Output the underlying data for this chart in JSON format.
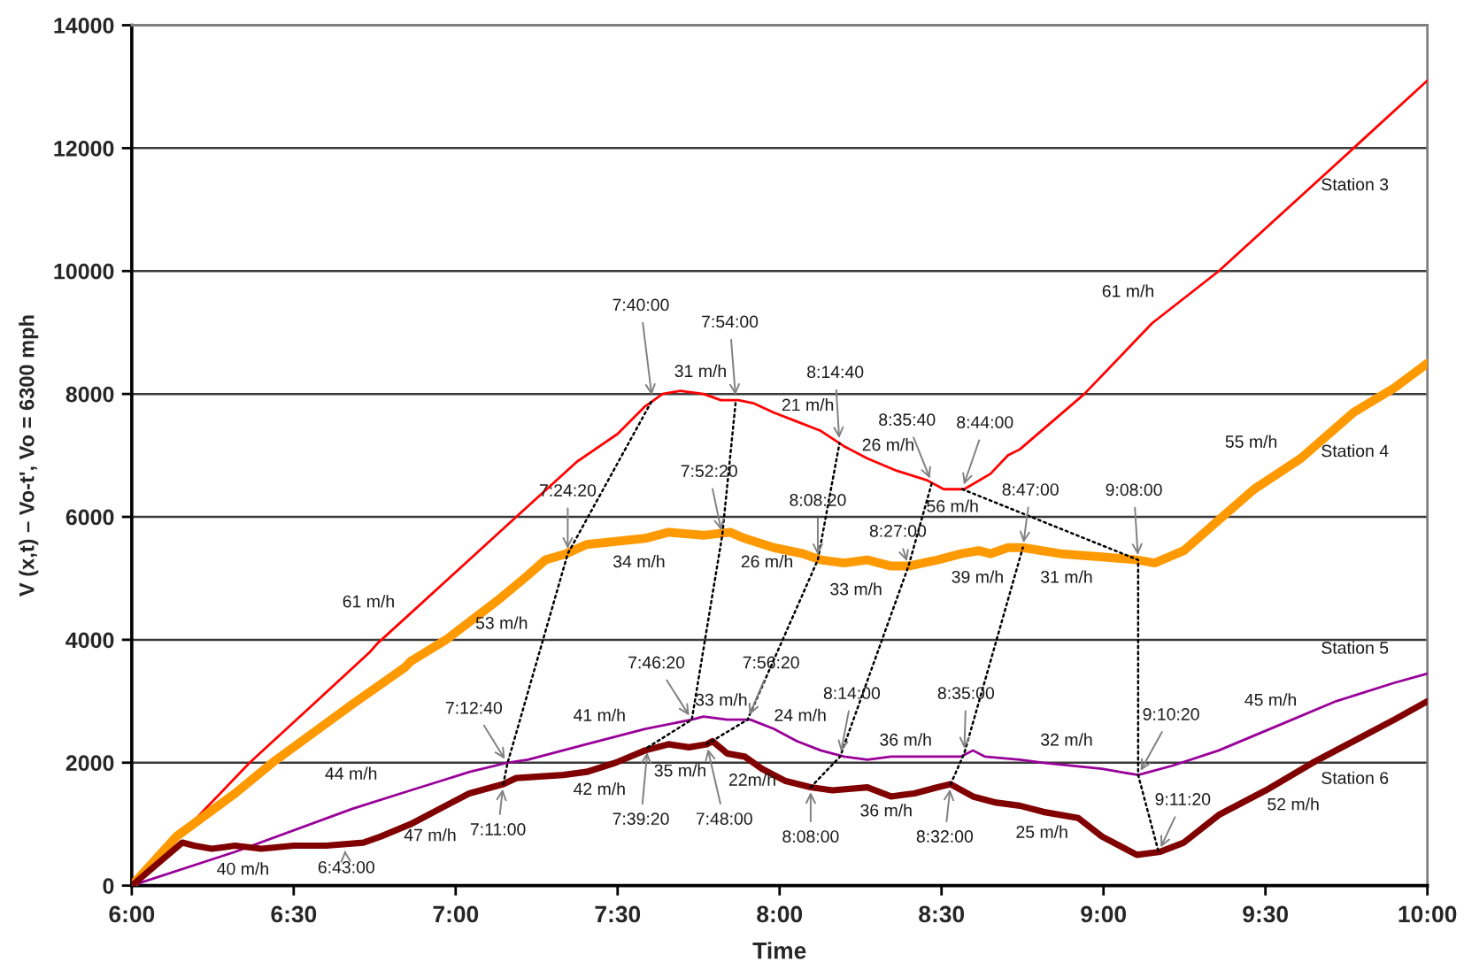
{
  "chart_data": {
    "type": "line",
    "xlabel": "Time",
    "ylabel": "V (x,t) – Vo-t', Vo = 6300 mph",
    "xlim": [
      6,
      10
    ],
    "xticks": [
      {
        "value": 6,
        "label": "6:00"
      },
      {
        "value": 6.5,
        "label": "6:30"
      },
      {
        "value": 7,
        "label": "7:00"
      },
      {
        "value": 7.5,
        "label": "7:30"
      },
      {
        "value": 8,
        "label": "8:00"
      },
      {
        "value": 8.5,
        "label": "8:30"
      },
      {
        "value": 9,
        "label": "9:00"
      },
      {
        "value": 9.5,
        "label": "9:30"
      },
      {
        "value": 10,
        "label": "10:00"
      }
    ],
    "ylim": [
      0,
      14000
    ],
    "yticks": [
      0,
      2000,
      4000,
      6000,
      8000,
      10000,
      12000,
      14000
    ],
    "grid": "y",
    "series": [
      {
        "name": "Station 3",
        "color": "#ff0000",
        "x": [
          6.0,
          6.2,
          6.364,
          6.55,
          6.735,
          6.76,
          6.771,
          7.0,
          7.187,
          7.375,
          7.5,
          7.585,
          7.639,
          7.693,
          7.765,
          7.819,
          7.873,
          7.919,
          7.981,
          8.054,
          8.127,
          8.199,
          8.271,
          8.362,
          8.453,
          8.507,
          8.57,
          8.651,
          8.705,
          8.742,
          8.941,
          9.15,
          9.356,
          9.772,
          10.0
        ],
        "values": [
          0,
          1100,
          2000,
          2900,
          3800,
          3950,
          4000,
          5100,
          6000,
          6900,
          7350,
          7800,
          8000,
          8050,
          8000,
          7900,
          7900,
          7850,
          7700,
          7550,
          7400,
          7150,
          6950,
          6750,
          6600,
          6450,
          6450,
          6700,
          7000,
          7100,
          8000,
          9150,
          10000,
          12000,
          13100
        ]
      },
      {
        "name": "Station 4",
        "color": "#ff9900",
        "x": [
          6.0,
          6.138,
          6.319,
          6.434,
          6.681,
          6.843,
          6.861,
          6.97,
          7.132,
          7.223,
          7.277,
          7.341,
          7.404,
          7.494,
          7.585,
          7.657,
          7.765,
          7.847,
          7.892,
          7.982,
          8.073,
          8.127,
          8.199,
          8.271,
          8.344,
          8.398,
          8.488,
          8.561,
          8.615,
          8.651,
          8.705,
          8.751,
          8.868,
          8.995,
          9.103,
          9.158,
          9.248,
          9.356,
          9.465,
          9.609,
          9.772,
          9.898,
          10.0
        ],
        "values": [
          0,
          800,
          1500,
          2000,
          2950,
          3550,
          3650,
          4000,
          4650,
          5050,
          5300,
          5400,
          5550,
          5600,
          5650,
          5750,
          5700,
          5750,
          5650,
          5500,
          5400,
          5300,
          5250,
          5300,
          5200,
          5200,
          5300,
          5400,
          5450,
          5400,
          5500,
          5500,
          5400,
          5350,
          5300,
          5250,
          5450,
          5950,
          6450,
          6950,
          7700,
          8100,
          8500
        ]
      },
      {
        "name": "Station 5",
        "color": "#990099",
        "x": [
          6.0,
          6.319,
          6.681,
          6.861,
          7.043,
          7.16,
          7.223,
          7.404,
          7.585,
          7.729,
          7.765,
          7.838,
          7.91,
          7.982,
          8.054,
          8.127,
          8.199,
          8.271,
          8.344,
          8.453,
          8.561,
          8.597,
          8.633,
          8.742,
          8.814,
          8.995,
          9.107,
          9.212,
          9.356,
          9.537,
          9.718,
          9.898,
          10.0
        ],
        "values": [
          0,
          550,
          1250,
          1550,
          1850,
          2000,
          2050,
          2300,
          2550,
          2700,
          2750,
          2700,
          2700,
          2550,
          2350,
          2200,
          2100,
          2050,
          2100,
          2100,
          2100,
          2200,
          2100,
          2050,
          2000,
          1900,
          1800,
          1950,
          2200,
          2600,
          3000,
          3300,
          3450
        ]
      },
      {
        "name": "Station 6",
        "color": "#800000",
        "x": [
          6.0,
          6.156,
          6.193,
          6.247,
          6.319,
          6.4,
          6.5,
          6.6,
          6.715,
          6.769,
          6.861,
          6.951,
          7.042,
          7.147,
          7.187,
          7.332,
          7.404,
          7.494,
          7.585,
          7.657,
          7.72,
          7.775,
          7.793,
          7.838,
          7.892,
          7.946,
          8.019,
          8.096,
          8.163,
          8.271,
          8.344,
          8.416,
          8.488,
          8.528,
          8.597,
          8.669,
          8.742,
          8.814,
          8.922,
          8.995,
          9.103,
          9.175,
          9.248,
          9.356,
          9.501,
          9.646,
          9.79,
          9.898,
          10.0
        ],
        "values": [
          0,
          700,
          650,
          600,
          650,
          600,
          650,
          650,
          700,
          800,
          1000,
          1250,
          1500,
          1650,
          1750,
          1800,
          1850,
          2000,
          2200,
          2300,
          2250,
          2300,
          2350,
          2150,
          2100,
          1900,
          1700,
          1600,
          1550,
          1600,
          1450,
          1500,
          1600,
          1650,
          1450,
          1350,
          1300,
          1200,
          1100,
          800,
          500,
          550,
          700,
          1150,
          1550,
          2000,
          2400,
          2700,
          3000
        ]
      },
      {
        "color": "#000000",
        "line_style": "dotted",
        "x": [
          7.147,
          7.16,
          7.346,
          7.607
        ],
        "values": [
          1650,
          1990,
          5400,
          7900
        ]
      },
      {
        "color": "#000000",
        "line_style": "dotted",
        "x": [
          7.593,
          7.729,
          7.823,
          7.865
        ],
        "values": [
          2250,
          2700,
          5700,
          7900
        ]
      },
      {
        "color": "#000000",
        "line_style": "dotted",
        "x": [
          7.775,
          7.901,
          8.118,
          8.185
        ],
        "values": [
          2300,
          2700,
          5300,
          7200
        ]
      },
      {
        "color": "#000000",
        "line_style": "dotted",
        "x": [
          8.096,
          8.187,
          8.398,
          8.47
        ],
        "values": [
          1600,
          2100,
          5200,
          6550
        ]
      },
      {
        "color": "#000000",
        "line_style": "dotted",
        "x": [
          8.528,
          8.57,
          8.751
        ],
        "values": [
          1650,
          2150,
          5500
        ]
      },
      {
        "color": "#000000",
        "line_style": "dotted",
        "x": [
          8.564,
          9.107,
          9.107,
          9.17
        ],
        "values": [
          6450,
          5300,
          1800,
          550
        ]
      }
    ],
    "annotations": [
      {
        "text": "7:40:00",
        "x": 7.607,
        "y": 7900
      },
      {
        "text": "7:54:00",
        "x": 7.865,
        "y": 7900
      },
      {
        "text": "8:14:40",
        "x": 8.185,
        "y": 7200
      },
      {
        "text": "8:35:40",
        "x": 8.47,
        "y": 6550
      },
      {
        "text": "8:44:00",
        "x": 8.564,
        "y": 6450
      },
      {
        "text": "7:24:20",
        "x": 7.346,
        "y": 5400
      },
      {
        "text": "7:52:20",
        "x": 7.823,
        "y": 5700
      },
      {
        "text": "8:08:20",
        "x": 8.118,
        "y": 5300
      },
      {
        "text": "8:27:00",
        "x": 8.398,
        "y": 5200
      },
      {
        "text": "8:47:00",
        "x": 8.751,
        "y": 5500
      },
      {
        "text": "9:08:00",
        "x": 9.107,
        "y": 5300
      },
      {
        "text": "7:12:40",
        "x": 7.16,
        "y": 1990
      },
      {
        "text": "7:11:00",
        "x": 7.147,
        "y": 1650
      },
      {
        "text": "6:43:00",
        "x": 6.657,
        "y": 650
      },
      {
        "text": "7:46:20",
        "x": 7.729,
        "y": 2700
      },
      {
        "text": "7:56:20",
        "x": 7.901,
        "y": 2700
      },
      {
        "text": "8:14:00",
        "x": 8.187,
        "y": 2100
      },
      {
        "text": "8:35:00",
        "x": 8.57,
        "y": 2150
      },
      {
        "text": "7:39:20",
        "x": 7.593,
        "y": 2250
      },
      {
        "text": "7:48:00",
        "x": 7.775,
        "y": 2300
      },
      {
        "text": "8:08:00",
        "x": 8.096,
        "y": 1600
      },
      {
        "text": "8:32:00",
        "x": 8.528,
        "y": 1650
      },
      {
        "text": "9:10:20",
        "x": 9.107,
        "y": 1800
      },
      {
        "text": "9:11:20",
        "x": 9.17,
        "y": 550
      },
      "31 m/h",
      "21 m/h",
      "26 m/h",
      "56 m/h",
      "61 m/h",
      "61 m/h",
      "53 m/h",
      "34 m/h",
      "26 m/h",
      "33 m/h",
      "39 m/h",
      "31 m/h",
      "55 m/h",
      "41 m/h",
      "33 m/h",
      "24 m/h",
      "36 m/h",
      "32 m/h",
      "45 m/h",
      "44 m/h",
      "42 m/h",
      "35 m/h",
      "22m/h",
      "36 m/h",
      "25 m/h",
      "52 m/h",
      "47 m/h",
      "40 m/h"
    ]
  }
}
